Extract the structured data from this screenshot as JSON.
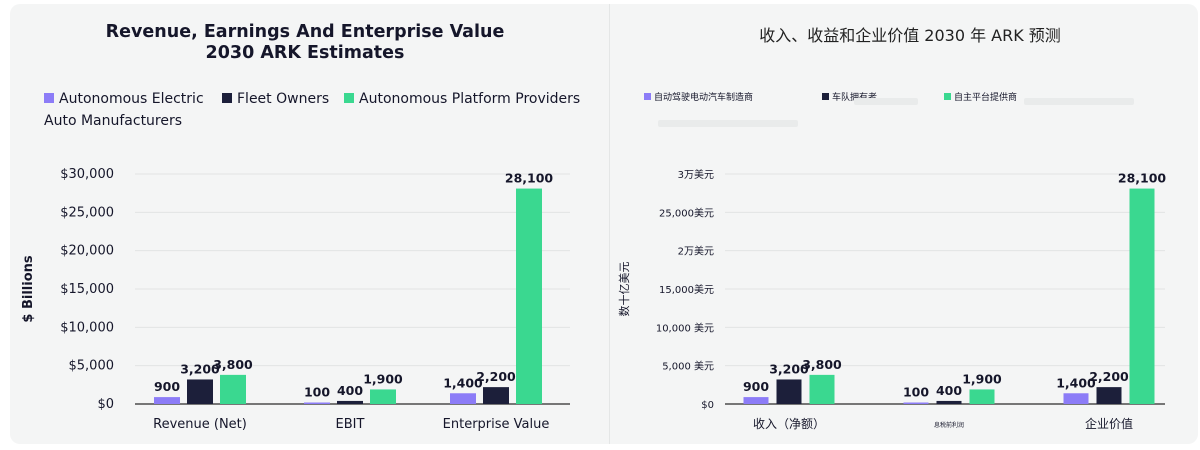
{
  "colors": {
    "autonomous_ev": "#8c7cf7",
    "fleet": "#1c1f3a",
    "platform": "#3ad890",
    "grid": "#e2e4e4",
    "axis": "#2a2a2a"
  },
  "left": {
    "title_line1": "Revenue, Earnings And Enterprise Value",
    "title_line2": "2030 ARK Estimates",
    "legend": [
      {
        "label_line1": "Autonomous Electric",
        "label_line2": "Auto Manufacturers",
        "color_key": "autonomous_ev"
      },
      {
        "label_line1": "Fleet Owners",
        "label_line2": "",
        "color_key": "fleet"
      },
      {
        "label_line1": "Autonomous Platform Providers",
        "label_line2": "",
        "color_key": "platform"
      }
    ]
  },
  "right": {
    "title": "收入、收益和企业价值 2030 年 ARK 预测",
    "legend": [
      {
        "label_line1": "自动驾驶电动汽车制造商",
        "label_line2": "",
        "color_key": "autonomous_ev"
      },
      {
        "label_line1": "车队拥有者",
        "label_line2": "",
        "color_key": "fleet"
      },
      {
        "label_line1": "自主平台提供商",
        "label_line2": "",
        "color_key": "platform"
      }
    ]
  },
  "chart_data": [
    {
      "type": "bar",
      "title": "Revenue, Earnings And Enterprise Value 2030 ARK Estimates",
      "ylabel": "$ Billions",
      "ylim": [
        0,
        30000
      ],
      "yticks": [
        0,
        5000,
        10000,
        15000,
        20000,
        25000,
        30000
      ],
      "ytick_labels": [
        "$0",
        "$5,000",
        "$10,000",
        "$15,000",
        "$20,000",
        "$25,000",
        "$30,000"
      ],
      "categories": [
        "Revenue (Net)",
        "EBIT",
        "Enterprise Value"
      ],
      "series": [
        {
          "name": "Autonomous Electric Auto Manufacturers",
          "values": [
            900,
            100,
            1400
          ],
          "labels": [
            "900",
            "100",
            "1,400"
          ]
        },
        {
          "name": "Fleet Owners",
          "values": [
            3200,
            400,
            2200
          ],
          "labels": [
            "3,200",
            "400",
            "2,200"
          ]
        },
        {
          "name": "Autonomous Platform Providers",
          "values": [
            3800,
            1900,
            28100
          ],
          "labels": [
            "3,800",
            "1,900",
            "28,100"
          ]
        }
      ],
      "grid": true,
      "legend_position": "top"
    },
    {
      "type": "bar",
      "title": "收入、收益和企业价值 2030 年 ARK 预测",
      "ylabel": "数十亿美元",
      "ylim": [
        0,
        30000
      ],
      "yticks": [
        0,
        5000,
        10000,
        15000,
        20000,
        25000,
        30000
      ],
      "ytick_labels": [
        "$0",
        "5,000 美元",
        "10,000 美元",
        "15,000美元",
        "2万美元",
        "25,000美元",
        "3万美元"
      ],
      "categories": [
        "收入（净额）",
        "息税前利润",
        "企业价值"
      ],
      "series": [
        {
          "name": "自动驾驶电动汽车制造商",
          "values": [
            900,
            100,
            1400
          ],
          "labels": [
            "900",
            "100",
            "1,400"
          ]
        },
        {
          "name": "车队拥有者",
          "values": [
            3200,
            400,
            2200
          ],
          "labels": [
            "3,200",
            "400",
            "2,200"
          ]
        },
        {
          "name": "自主平台提供商",
          "values": [
            3800,
            1900,
            28100
          ],
          "labels": [
            "3,800",
            "1,900",
            "28,100"
          ]
        }
      ],
      "grid": true,
      "legend_position": "top"
    }
  ]
}
